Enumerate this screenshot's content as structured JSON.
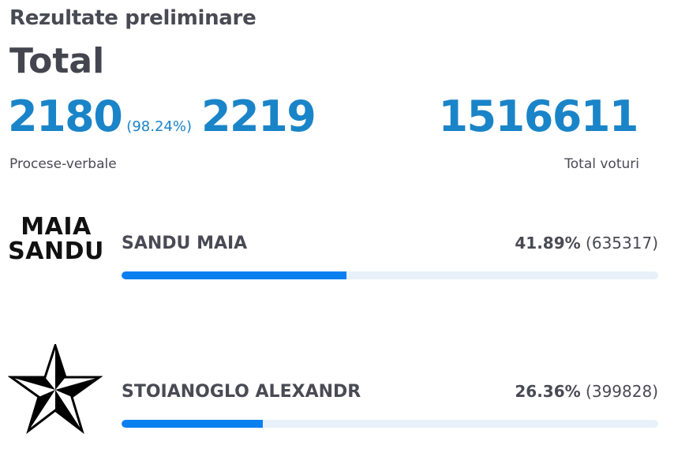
{
  "header": {
    "title": "Rezultate preliminare",
    "subtitle": "Total"
  },
  "stats": {
    "processed": "2180",
    "processed_pct": "(98.24%)",
    "total_protocols": "2219",
    "processed_caption": "Procese-verbale",
    "total_votes": "1516611",
    "total_votes_caption": "Total voturi"
  },
  "candidates": [
    {
      "name": "SANDU MAIA",
      "logo_text_line1": "MAIA",
      "logo_text_line2": "SANDU",
      "percent": "41.89%",
      "votes": "(635317)",
      "share": 0.4189,
      "accent": "#0a7ff0"
    },
    {
      "name": "STOIANOGLO ALEXANDR",
      "logo_icon": "star-icon",
      "percent": "26.36%",
      "votes": "(399828)",
      "share": 0.2636,
      "accent": "#0a7ff0"
    }
  ]
}
